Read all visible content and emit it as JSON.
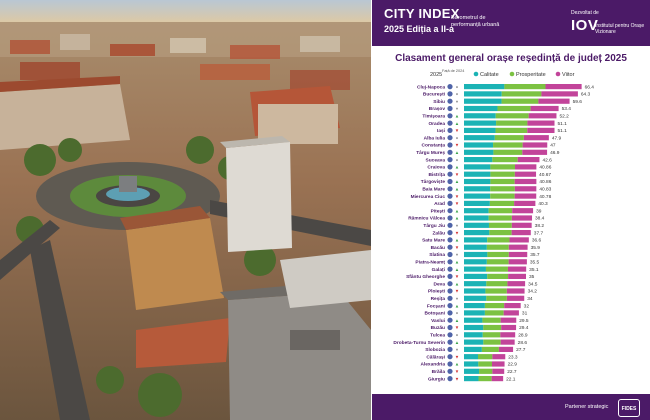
{
  "banner": {
    "title": "CITY INDEX",
    "edition": "2025 Ediția a II-a",
    "subtitle": "Barometrul de performanță urbană",
    "developed_by": "Dezvoltat de",
    "logo_text": "IOV",
    "institute": "Institutul pentru Orașe Vizionare"
  },
  "footer": {
    "partner_label": "Partener strategic",
    "partner_logo": "FIDES"
  },
  "colors": {
    "banner": "#4b1a67",
    "calitate": "#1bb3b5",
    "prosperitate": "#7cc242",
    "viitor": "#c2449a",
    "rank_circle": "#4f64a8"
  },
  "chart_data": {
    "type": "bar",
    "orientation": "horizontal",
    "stacked": true,
    "title": "Clasament general orașe reședință de județ 2025",
    "year_label": "2025",
    "change_label": "Față de 2024",
    "legend": [
      "Calitate",
      "Prosperitate",
      "Viitor"
    ],
    "legend_position": "top",
    "categories": [
      "Cluj-Napoca",
      "București",
      "Sibiu",
      "Brașov",
      "Timișoara",
      "Oradea",
      "Iași",
      "Alba Iulia",
      "Constanța",
      "Târgu Mureș",
      "Suceava",
      "Craiova",
      "Bistrița",
      "Târgoviște",
      "Baia Mare",
      "Miercurea Ciuc",
      "Arad",
      "Pitești",
      "Râmnicu Vâlcea",
      "Târgu Jiu",
      "Zalău",
      "Satu Mare",
      "Bacău",
      "Slatina",
      "Piatra-Neamț",
      "Galați",
      "Sfântu Gheorghe",
      "Deva",
      "Ploiești",
      "Reșița",
      "Focșani",
      "Botoșani",
      "Vaslui",
      "Buzău",
      "Tulcea",
      "Drobeta-Turnu Severin",
      "Slobozia",
      "Călărași",
      "Alexandria",
      "Brăila",
      "Giurgiu"
    ],
    "totals": [
      66.4,
      64.3,
      59.6,
      53.4,
      52.2,
      51.1,
      51.1,
      47.9,
      47,
      46.9,
      42.6,
      40.86,
      40.67,
      40.86,
      40.83,
      40.78,
      40.3,
      39,
      38.4,
      38.2,
      37.7,
      36.6,
      35.9,
      35.7,
      35.5,
      35.1,
      35,
      34.5,
      34.2,
      34,
      32,
      31,
      29.5,
      29.4,
      28.9,
      28.6,
      27.7,
      23.3,
      22.9,
      22.7,
      22.1
    ],
    "series": [
      {
        "name": "Calitate",
        "values": [
          22.8,
          21.3,
          21.2,
          18.9,
          17.9,
          18.1,
          17.8,
          17.4,
          16.4,
          16.6,
          16.0,
          14.9,
          14.9,
          14.9,
          14.8,
          14.8,
          14.6,
          13.9,
          13.9,
          14.1,
          14.3,
          13.1,
          12.9,
          13.2,
          12.9,
          12.4,
          13.1,
          12.6,
          12.1,
          12.6,
          11.8,
          11.8,
          10.4,
          10.9,
          10.6,
          10.9,
          10.1,
          7.9,
          8.1,
          8.5,
          8.2
        ]
      },
      {
        "name": "Prosperitate",
        "values": [
          23.2,
          22.4,
          20.8,
          18.7,
          18.6,
          17.7,
          17.9,
          16.4,
          16.7,
          16.3,
          14.3,
          13.9,
          13.8,
          13.7,
          13.9,
          13.8,
          13.7,
          13.3,
          13.1,
          12.9,
          12.6,
          12.6,
          12.4,
          12.1,
          12.3,
          12.4,
          11.8,
          11.9,
          12.1,
          11.6,
          10.9,
          10.6,
          10.3,
          10.1,
          9.9,
          9.8,
          9.6,
          8.1,
          7.7,
          7.5,
          7.4
        ]
      },
      {
        "name": "Viitor",
        "values": [
          20.4,
          20.6,
          17.6,
          15.8,
          15.7,
          15.3,
          15.4,
          14.1,
          13.9,
          14.0,
          12.3,
          12.06,
          11.97,
          12.26,
          12.13,
          12.18,
          12.0,
          11.8,
          11.4,
          11.2,
          10.8,
          10.9,
          10.6,
          10.4,
          10.3,
          10.3,
          10.1,
          10.0,
          10.0,
          9.8,
          9.3,
          8.6,
          8.8,
          8.4,
          8.4,
          7.9,
          8.0,
          7.3,
          7.1,
          6.7,
          6.5
        ]
      }
    ],
    "change": [
      "same",
      "same",
      "same",
      "same",
      "up",
      "up",
      "down",
      "same",
      "down",
      "up",
      "same",
      "up",
      "down",
      "up",
      "up",
      "down",
      "down",
      "up",
      "up",
      "same",
      "down",
      "up",
      "down",
      "same",
      "up",
      "up",
      "down",
      "up",
      "down",
      "same",
      "up",
      "same",
      "up",
      "down",
      "same",
      "up",
      "same",
      "down",
      "up",
      "down",
      "down"
    ],
    "xlim": [
      0,
      70
    ]
  }
}
